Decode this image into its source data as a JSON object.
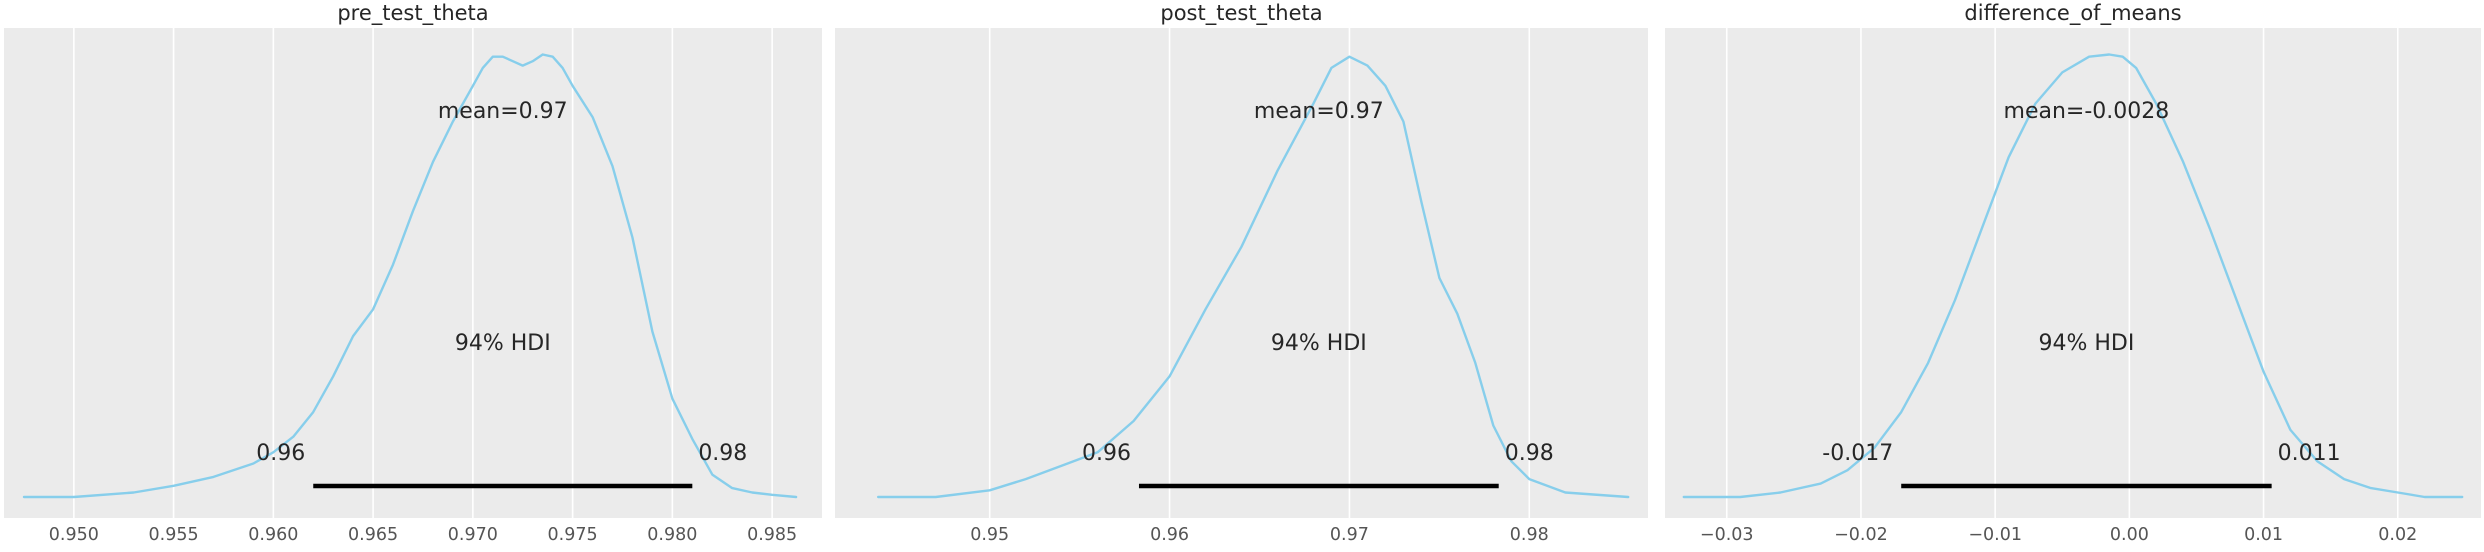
{
  "chart_data": [
    {
      "type": "line",
      "title": "pre_test_theta",
      "xlim": [
        0.9465,
        0.9875
      ],
      "xticks": [
        "0.950",
        "0.955",
        "0.960",
        "0.965",
        "0.970",
        "0.975",
        "0.980",
        "0.985"
      ],
      "grid": "vertical",
      "kde": {
        "x": [
          0.9475,
          0.95,
          0.953,
          0.955,
          0.957,
          0.959,
          0.96,
          0.961,
          0.962,
          0.963,
          0.964,
          0.965,
          0.966,
          0.967,
          0.968,
          0.969,
          0.97,
          0.9705,
          0.971,
          0.9715,
          0.972,
          0.9725,
          0.973,
          0.9735,
          0.974,
          0.9745,
          0.975,
          0.976,
          0.977,
          0.978,
          0.979,
          0.98,
          0.981,
          0.982,
          0.983,
          0.984,
          0.985,
          0.9862
        ],
        "y": [
          0.0,
          0.0,
          0.01,
          0.025,
          0.045,
          0.075,
          0.1,
          0.135,
          0.19,
          0.27,
          0.36,
          0.42,
          0.52,
          0.64,
          0.75,
          0.84,
          0.92,
          0.96,
          0.985,
          0.985,
          0.975,
          0.965,
          0.975,
          0.99,
          0.985,
          0.96,
          0.92,
          0.85,
          0.74,
          0.58,
          0.37,
          0.22,
          0.13,
          0.05,
          0.02,
          0.01,
          0.005,
          0.0
        ]
      },
      "mean_label": "mean=0.97",
      "hdi_label": "94% HDI",
      "hdi": [
        0.962,
        0.981
      ],
      "hdi_low_label": "0.96",
      "hdi_high_label": "0.98"
    },
    {
      "type": "line",
      "title": "post_test_theta",
      "xlim": [
        0.9414,
        0.9866
      ],
      "xticks": [
        "0.95",
        "0.96",
        "0.97",
        "0.98"
      ],
      "grid": "vertical",
      "kde": {
        "x": [
          0.9438,
          0.947,
          0.95,
          0.952,
          0.954,
          0.956,
          0.958,
          0.96,
          0.962,
          0.964,
          0.966,
          0.968,
          0.969,
          0.97,
          0.971,
          0.972,
          0.973,
          0.974,
          0.975,
          0.976,
          0.977,
          0.978,
          0.979,
          0.98,
          0.982,
          0.9855
        ],
        "y": [
          0.0,
          0.0,
          0.015,
          0.04,
          0.07,
          0.1,
          0.17,
          0.27,
          0.42,
          0.56,
          0.73,
          0.88,
          0.96,
          0.985,
          0.965,
          0.92,
          0.84,
          0.66,
          0.49,
          0.41,
          0.3,
          0.16,
          0.08,
          0.04,
          0.01,
          0.0
        ]
      },
      "mean_label": "mean=0.97",
      "hdi_label": "94% HDI",
      "hdi": [
        0.9583,
        0.9783
      ],
      "hdi_low_label": "0.96",
      "hdi_high_label": "0.98"
    },
    {
      "type": "line",
      "title": "difference_of_means",
      "xlim": [
        -0.0346,
        0.0262
      ],
      "xticks": [
        "−0.03",
        "−0.02",
        "−0.01",
        "0.00",
        "0.01",
        "0.02"
      ],
      "grid": "vertical",
      "kde": {
        "x": [
          -0.0332,
          -0.029,
          -0.026,
          -0.023,
          -0.021,
          -0.019,
          -0.017,
          -0.015,
          -0.013,
          -0.011,
          -0.009,
          -0.007,
          -0.005,
          -0.003,
          -0.0015,
          -0.0005,
          0.0005,
          0.002,
          0.004,
          0.006,
          0.008,
          0.01,
          0.012,
          0.014,
          0.016,
          0.018,
          0.02,
          0.022,
          0.0248
        ],
        "y": [
          0.0,
          0.0,
          0.01,
          0.03,
          0.06,
          0.11,
          0.19,
          0.3,
          0.44,
          0.6,
          0.76,
          0.88,
          0.95,
          0.985,
          0.99,
          0.985,
          0.96,
          0.88,
          0.75,
          0.6,
          0.44,
          0.28,
          0.15,
          0.08,
          0.04,
          0.02,
          0.01,
          0.0,
          0.0
        ]
      },
      "mean_label": "mean=-0.0028",
      "hdi_label": "94% HDI",
      "hdi": [
        -0.017,
        0.0106
      ],
      "hdi_low_label": "-0.017",
      "hdi_high_label": "0.011"
    }
  ],
  "colors": {
    "background": "#ebebeb",
    "grid": "#ffffff",
    "line": "#87ceeb",
    "hdi": "#000000",
    "text": "#262626",
    "tick": "#555555"
  }
}
